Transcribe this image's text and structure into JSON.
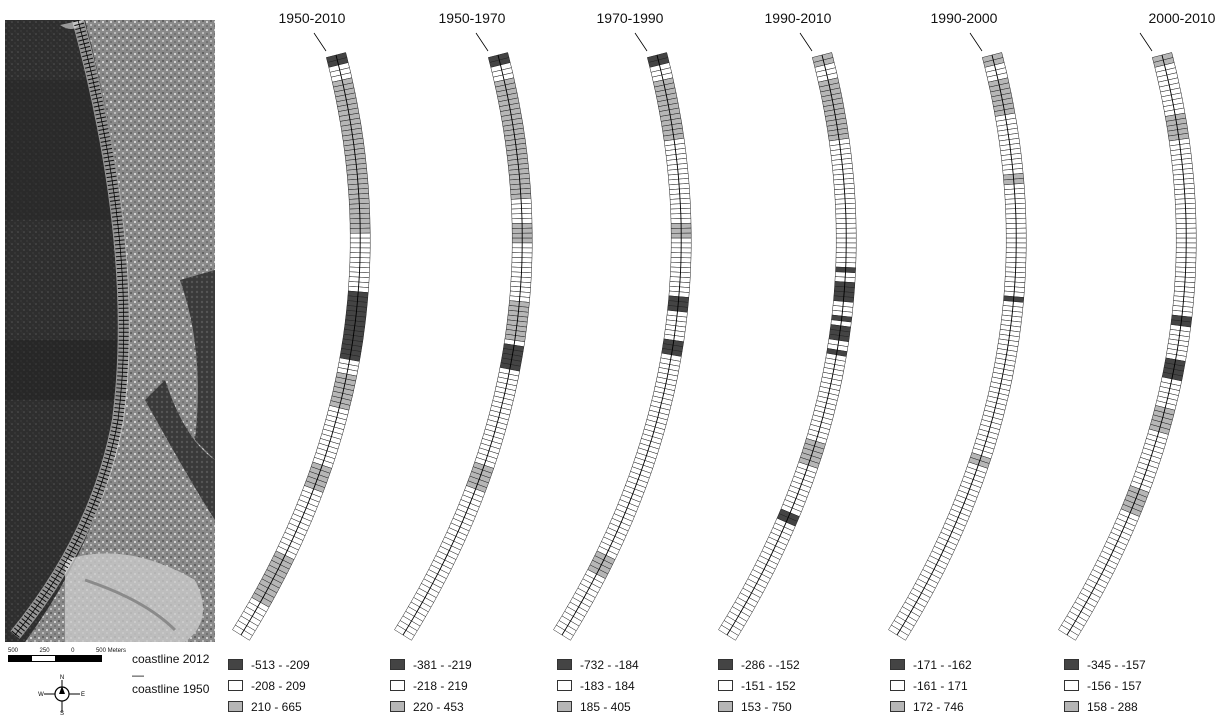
{
  "panels": [
    {
      "title": "1950-2010",
      "legend": [
        "-513 - -209",
        "-208 - 209",
        "210 - 665"
      ],
      "dark_bands": [
        [
          0.4,
          0.52
        ]
      ],
      "grey_bands": [
        [
          0.04,
          0.3
        ],
        [
          0.54,
          0.6
        ],
        [
          0.7,
          0.74
        ],
        [
          0.86,
          0.94
        ]
      ],
      "cap": "dark"
    },
    {
      "title": "1950-1970",
      "legend": [
        "-381 - -219",
        "-218 - 219",
        "220 - 453"
      ],
      "dark_bands": [
        [
          0.49,
          0.53
        ]
      ],
      "grey_bands": [
        [
          0.04,
          0.24
        ],
        [
          0.28,
          0.32
        ],
        [
          0.42,
          0.48
        ],
        [
          0.7,
          0.74
        ]
      ],
      "cap": "dark"
    },
    {
      "title": "1970-1990",
      "legend": [
        "-732 - -184",
        "-183 - 184",
        "185 - 405"
      ],
      "dark_bands": [
        [
          0.41,
          0.43
        ],
        [
          0.48,
          0.51
        ]
      ],
      "grey_bands": [
        [
          0.04,
          0.14
        ],
        [
          0.28,
          0.31
        ],
        [
          0.86,
          0.89
        ]
      ],
      "cap": "dark"
    },
    {
      "title": "1990-2010",
      "legend": [
        "-286 - -152",
        "-151 - 152",
        "153 - 750"
      ],
      "dark_bands": [
        [
          0.36,
          0.37
        ],
        [
          0.38,
          0.42
        ],
        [
          0.44,
          0.45
        ],
        [
          0.46,
          0.48
        ],
        [
          0.5,
          0.51
        ],
        [
          0.78,
          0.8
        ]
      ],
      "grey_bands": [
        [
          0.04,
          0.14
        ],
        [
          0.66,
          0.7
        ]
      ],
      "cap": "grey"
    },
    {
      "title": "1990-2000",
      "legend": [
        "-171 - -162",
        "-161 - 171",
        "172 - 746"
      ],
      "dark_bands": [
        [
          0.41,
          0.415
        ]
      ],
      "grey_bands": [
        [
          0.04,
          0.1
        ],
        [
          0.2,
          0.22
        ],
        [
          0.68,
          0.7
        ]
      ],
      "cap": "grey"
    },
    {
      "title": "2000-2010",
      "legend": [
        "-345 - -157",
        "-156 - 157",
        "158 - 288"
      ],
      "dark_bands": [
        [
          0.44,
          0.46
        ],
        [
          0.52,
          0.55
        ]
      ],
      "grey_bands": [
        [
          0.1,
          0.14
        ],
        [
          0.6,
          0.64
        ],
        [
          0.74,
          0.78
        ]
      ],
      "cap": "grey"
    }
  ],
  "scalebar": {
    "labels": [
      "500",
      "250",
      "0",
      "500 Meters"
    ]
  },
  "compass": {
    "n": "N",
    "e": "E",
    "s": "S",
    "w": "W"
  },
  "coast_legend": {
    "line1": "coastline 2012",
    "sym": "—",
    "line2": "coastline 1950"
  }
}
